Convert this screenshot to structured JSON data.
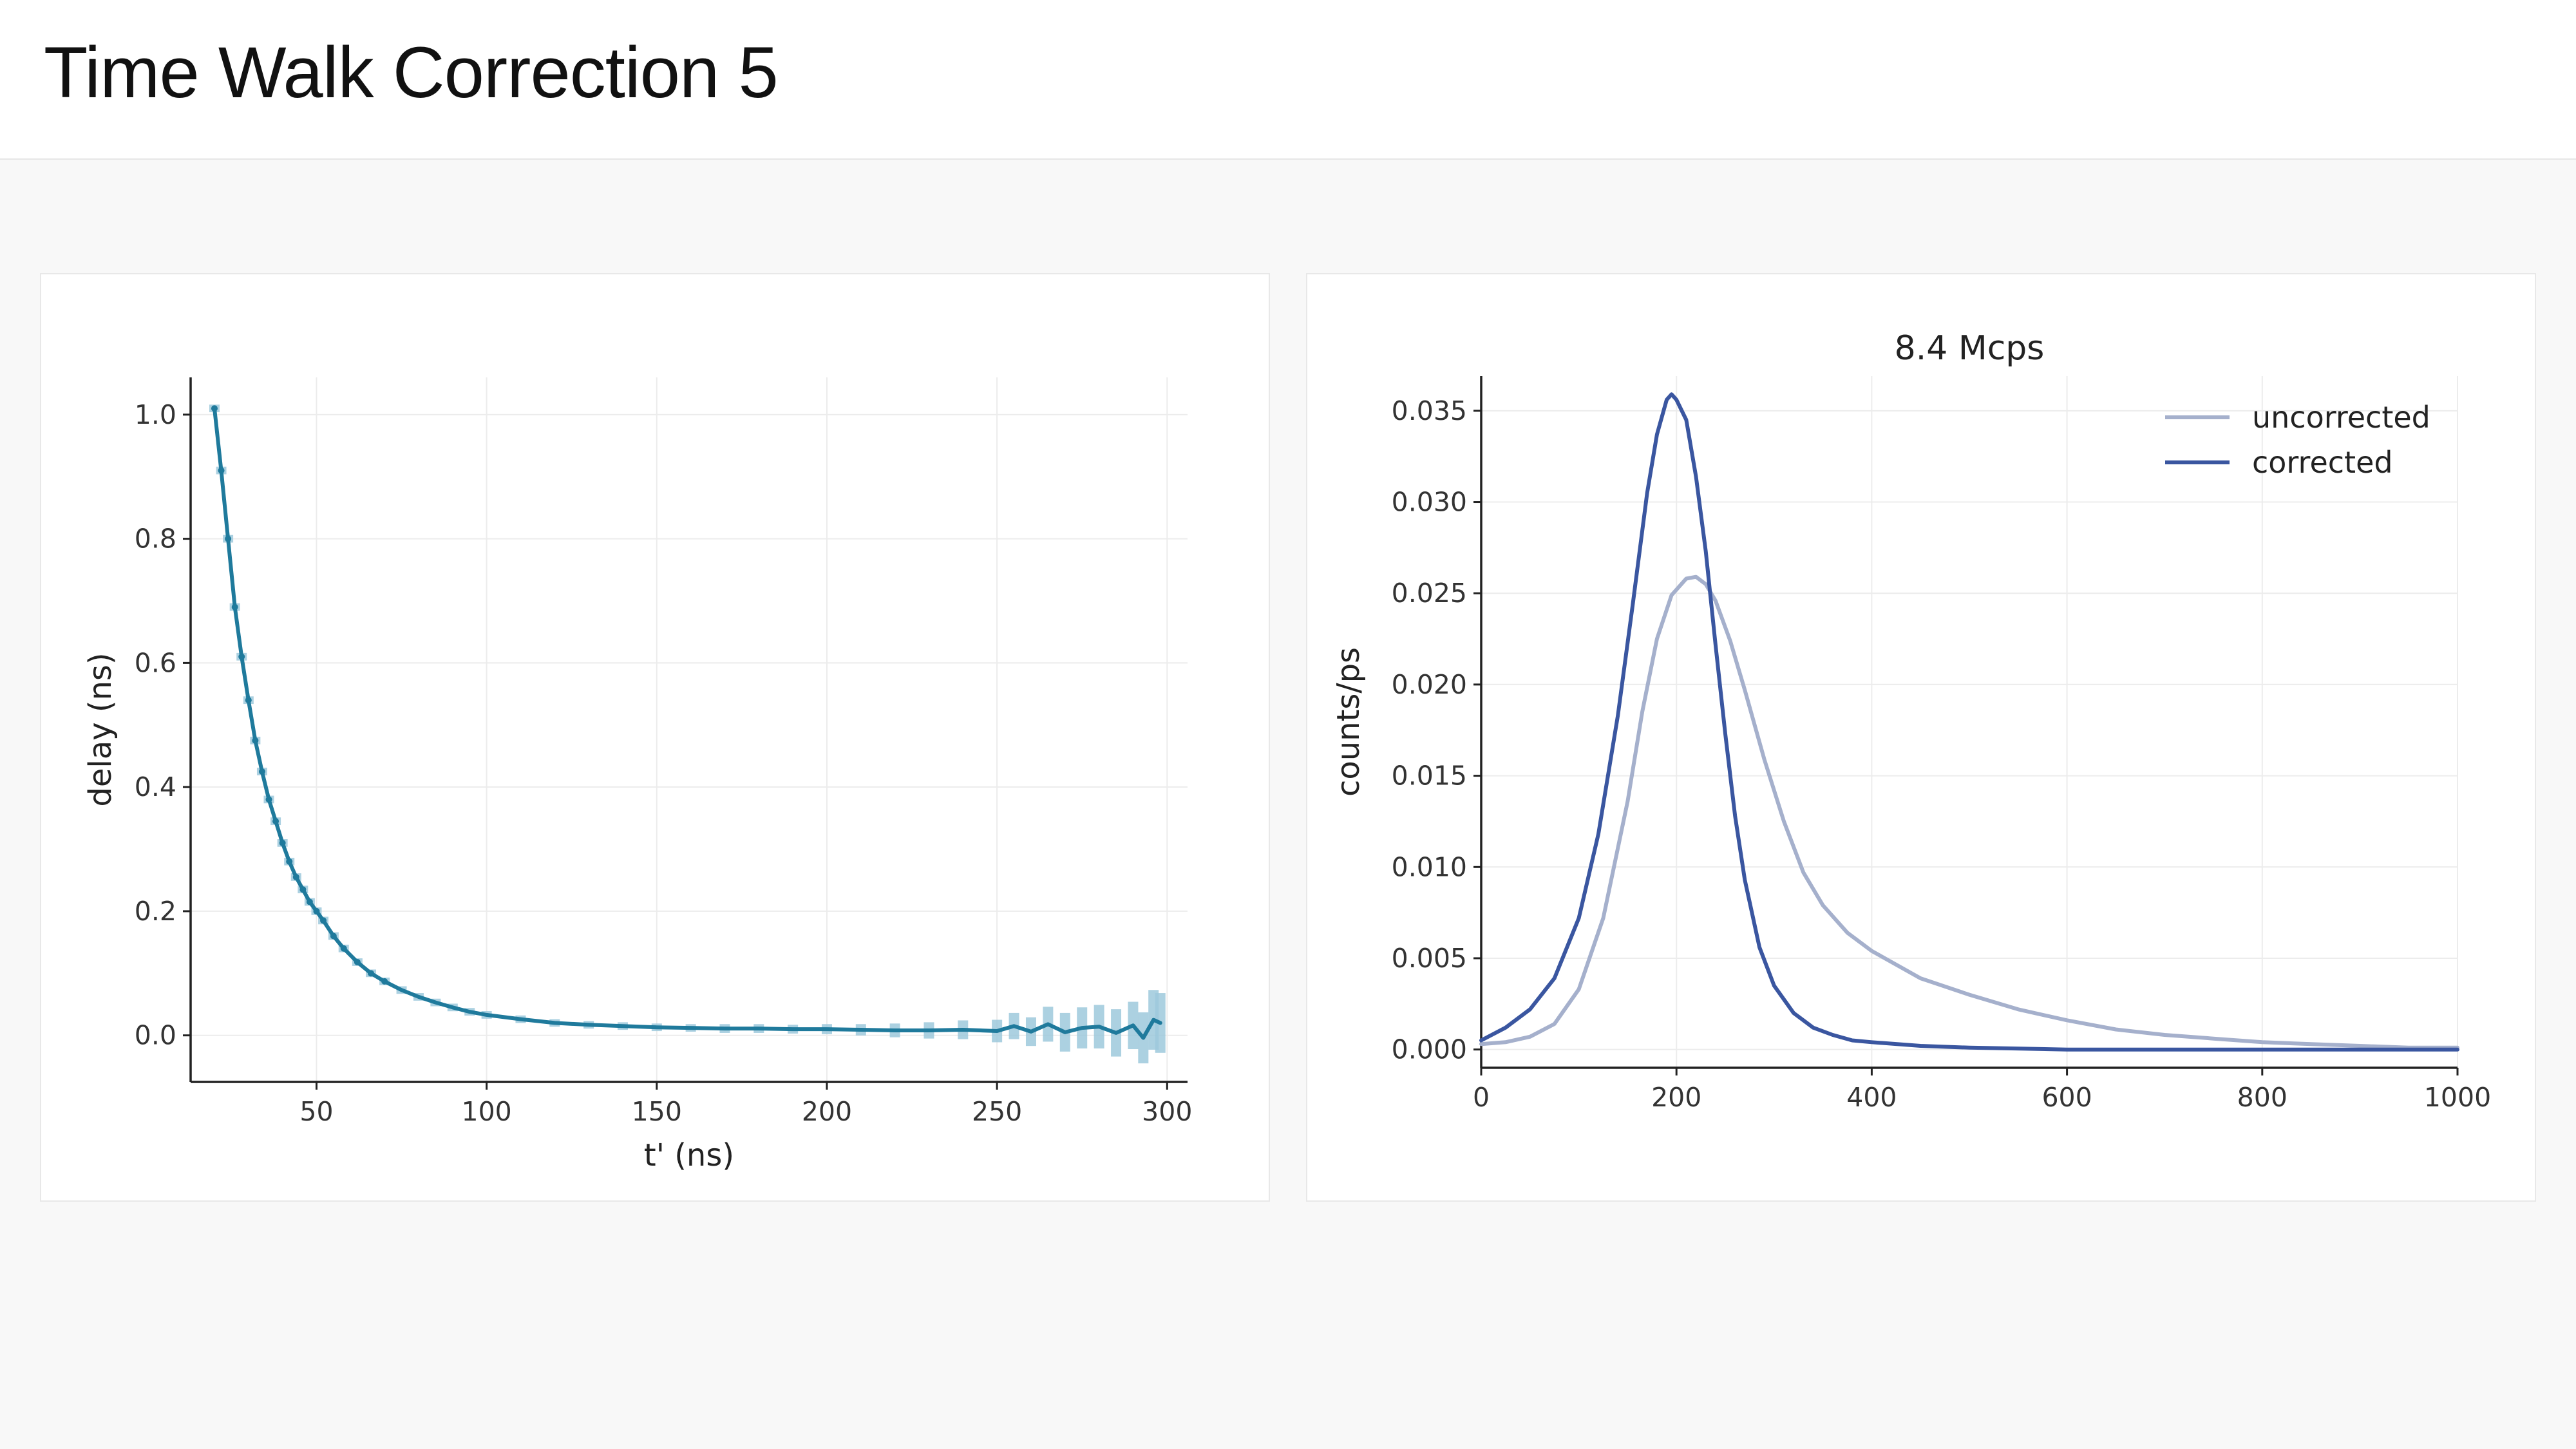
{
  "page": {
    "title": "Time Walk Correction 5"
  },
  "colors": {
    "delay_line": "#1f7a9c",
    "delay_band": "#9ec9dc",
    "uncorrected": "#a5b0cc",
    "corrected": "#3a56a0",
    "grid": "#ececec",
    "axis": "#222222"
  },
  "chart_data": [
    {
      "type": "line",
      "title": "",
      "xlabel": "t' (ns)",
      "ylabel": "delay (ns)",
      "xlim": [
        13,
        306
      ],
      "ylim": [
        -0.075,
        1.06
      ],
      "xticks": [
        "50",
        "100",
        "150",
        "200",
        "250",
        "300"
      ],
      "yticks": [
        "0.0",
        "0.2",
        "0.4",
        "0.6",
        "0.8",
        "1.0"
      ],
      "grid": true,
      "legend": "none",
      "series": [
        {
          "x": [
            20,
            22,
            24,
            26,
            28,
            30,
            32,
            34,
            36,
            38,
            40,
            42,
            44,
            46,
            48,
            50,
            52,
            55,
            58,
            62,
            66,
            70,
            75,
            80,
            85,
            90,
            95,
            100,
            110,
            120,
            130,
            140,
            150,
            160,
            170,
            180,
            190,
            200,
            210,
            220,
            230,
            240,
            250,
            255,
            260,
            265,
            270,
            275,
            280,
            285,
            290,
            293,
            296,
            298
          ],
          "y": [
            1.01,
            0.91,
            0.8,
            0.69,
            0.61,
            0.54,
            0.475,
            0.425,
            0.38,
            0.345,
            0.31,
            0.28,
            0.255,
            0.235,
            0.215,
            0.2,
            0.185,
            0.16,
            0.14,
            0.118,
            0.1,
            0.087,
            0.073,
            0.062,
            0.053,
            0.045,
            0.038,
            0.033,
            0.026,
            0.02,
            0.017,
            0.015,
            0.013,
            0.012,
            0.011,
            0.011,
            0.01,
            0.01,
            0.009,
            0.008,
            0.008,
            0.009,
            0.007,
            0.015,
            0.006,
            0.018,
            0.005,
            0.012,
            0.014,
            0.004,
            0.016,
            -0.004,
            0.025,
            0.02
          ],
          "err": [
            0.003,
            0.003,
            0.003,
            0.003,
            0.003,
            0.003,
            0.003,
            0.003,
            0.003,
            0.003,
            0.003,
            0.003,
            0.003,
            0.003,
            0.003,
            0.003,
            0.003,
            0.003,
            0.003,
            0.003,
            0.003,
            0.003,
            0.003,
            0.003,
            0.003,
            0.003,
            0.003,
            0.003,
            0.003,
            0.003,
            0.003,
            0.003,
            0.003,
            0.003,
            0.004,
            0.004,
            0.004,
            0.005,
            0.006,
            0.008,
            0.01,
            0.012,
            0.015,
            0.018,
            0.02,
            0.025,
            0.028,
            0.03,
            0.032,
            0.035,
            0.035,
            0.038,
            0.045,
            0.045
          ]
        }
      ]
    },
    {
      "type": "line",
      "title": "8.4 Mcps",
      "xlabel": "",
      "ylabel": "counts/ps",
      "xlim": [
        0,
        1000
      ],
      "ylim": [
        -0.001,
        0.0369
      ],
      "xticks": [
        "0",
        "200",
        "400",
        "600",
        "800",
        "1000"
      ],
      "yticks": [
        "0.000",
        "0.005",
        "0.010",
        "0.015",
        "0.020",
        "0.025",
        "0.030",
        "0.035"
      ],
      "grid": true,
      "legend": "top-right",
      "series": [
        {
          "name": "uncorrected",
          "x": [
            0,
            25,
            50,
            75,
            100,
            125,
            150,
            165,
            180,
            195,
            210,
            220,
            230,
            240,
            255,
            270,
            290,
            310,
            330,
            350,
            375,
            400,
            450,
            500,
            550,
            600,
            650,
            700,
            750,
            800,
            850,
            900,
            950,
            1000
          ],
          "y": [
            0.0003,
            0.0004,
            0.0007,
            0.0014,
            0.0033,
            0.0072,
            0.0136,
            0.0185,
            0.0225,
            0.0249,
            0.0258,
            0.0259,
            0.0255,
            0.0246,
            0.0224,
            0.0197,
            0.0159,
            0.0125,
            0.0097,
            0.0079,
            0.0064,
            0.0054,
            0.0039,
            0.003,
            0.0022,
            0.0016,
            0.0011,
            0.0008,
            0.0006,
            0.0004,
            0.0003,
            0.0002,
            0.0001,
            0.0001
          ]
        },
        {
          "name": "corrected",
          "x": [
            0,
            25,
            50,
            75,
            100,
            120,
            140,
            155,
            170,
            180,
            190,
            195,
            200,
            210,
            220,
            230,
            240,
            250,
            260,
            270,
            285,
            300,
            320,
            340,
            360,
            380,
            400,
            450,
            500,
            600,
            700,
            800,
            900,
            1000
          ],
          "y": [
            0.0005,
            0.0012,
            0.0022,
            0.0039,
            0.0072,
            0.0118,
            0.0183,
            0.0243,
            0.0305,
            0.0337,
            0.0356,
            0.0359,
            0.0356,
            0.0345,
            0.0314,
            0.0273,
            0.0222,
            0.0173,
            0.0128,
            0.0093,
            0.0056,
            0.0035,
            0.002,
            0.0012,
            0.0008,
            0.0005,
            0.0004,
            0.0002,
            0.0001,
            0.0,
            0.0,
            0.0,
            0.0,
            0.0
          ]
        }
      ]
    }
  ]
}
